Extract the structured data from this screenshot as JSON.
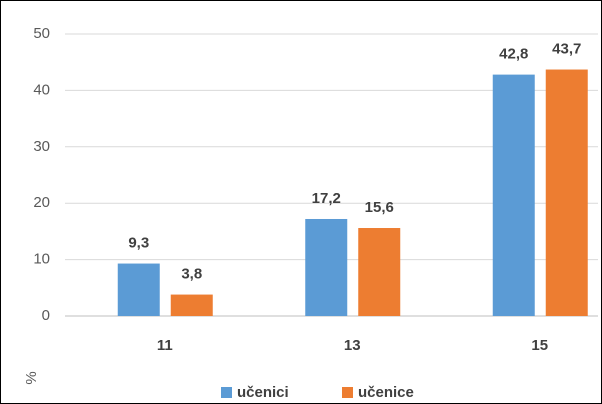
{
  "chart_data": {
    "type": "bar",
    "categories": [
      "11",
      "13",
      "15"
    ],
    "series": [
      {
        "name": "učenici",
        "color": "#5b9bd5",
        "values": [
          9.3,
          17.2,
          42.8
        ],
        "value_labels": [
          "9,3",
          "17,2",
          "42,8"
        ]
      },
      {
        "name": "učenice",
        "color": "#ed7d31",
        "values": [
          3.8,
          15.6,
          43.7
        ],
        "value_labels": [
          "3,8",
          "15,6",
          "43,7"
        ]
      }
    ],
    "y_label": "%",
    "ylim": [
      0,
      50
    ],
    "yticks": [
      0,
      10,
      20,
      30,
      40,
      50
    ],
    "grid": true,
    "legend": "bottom"
  }
}
